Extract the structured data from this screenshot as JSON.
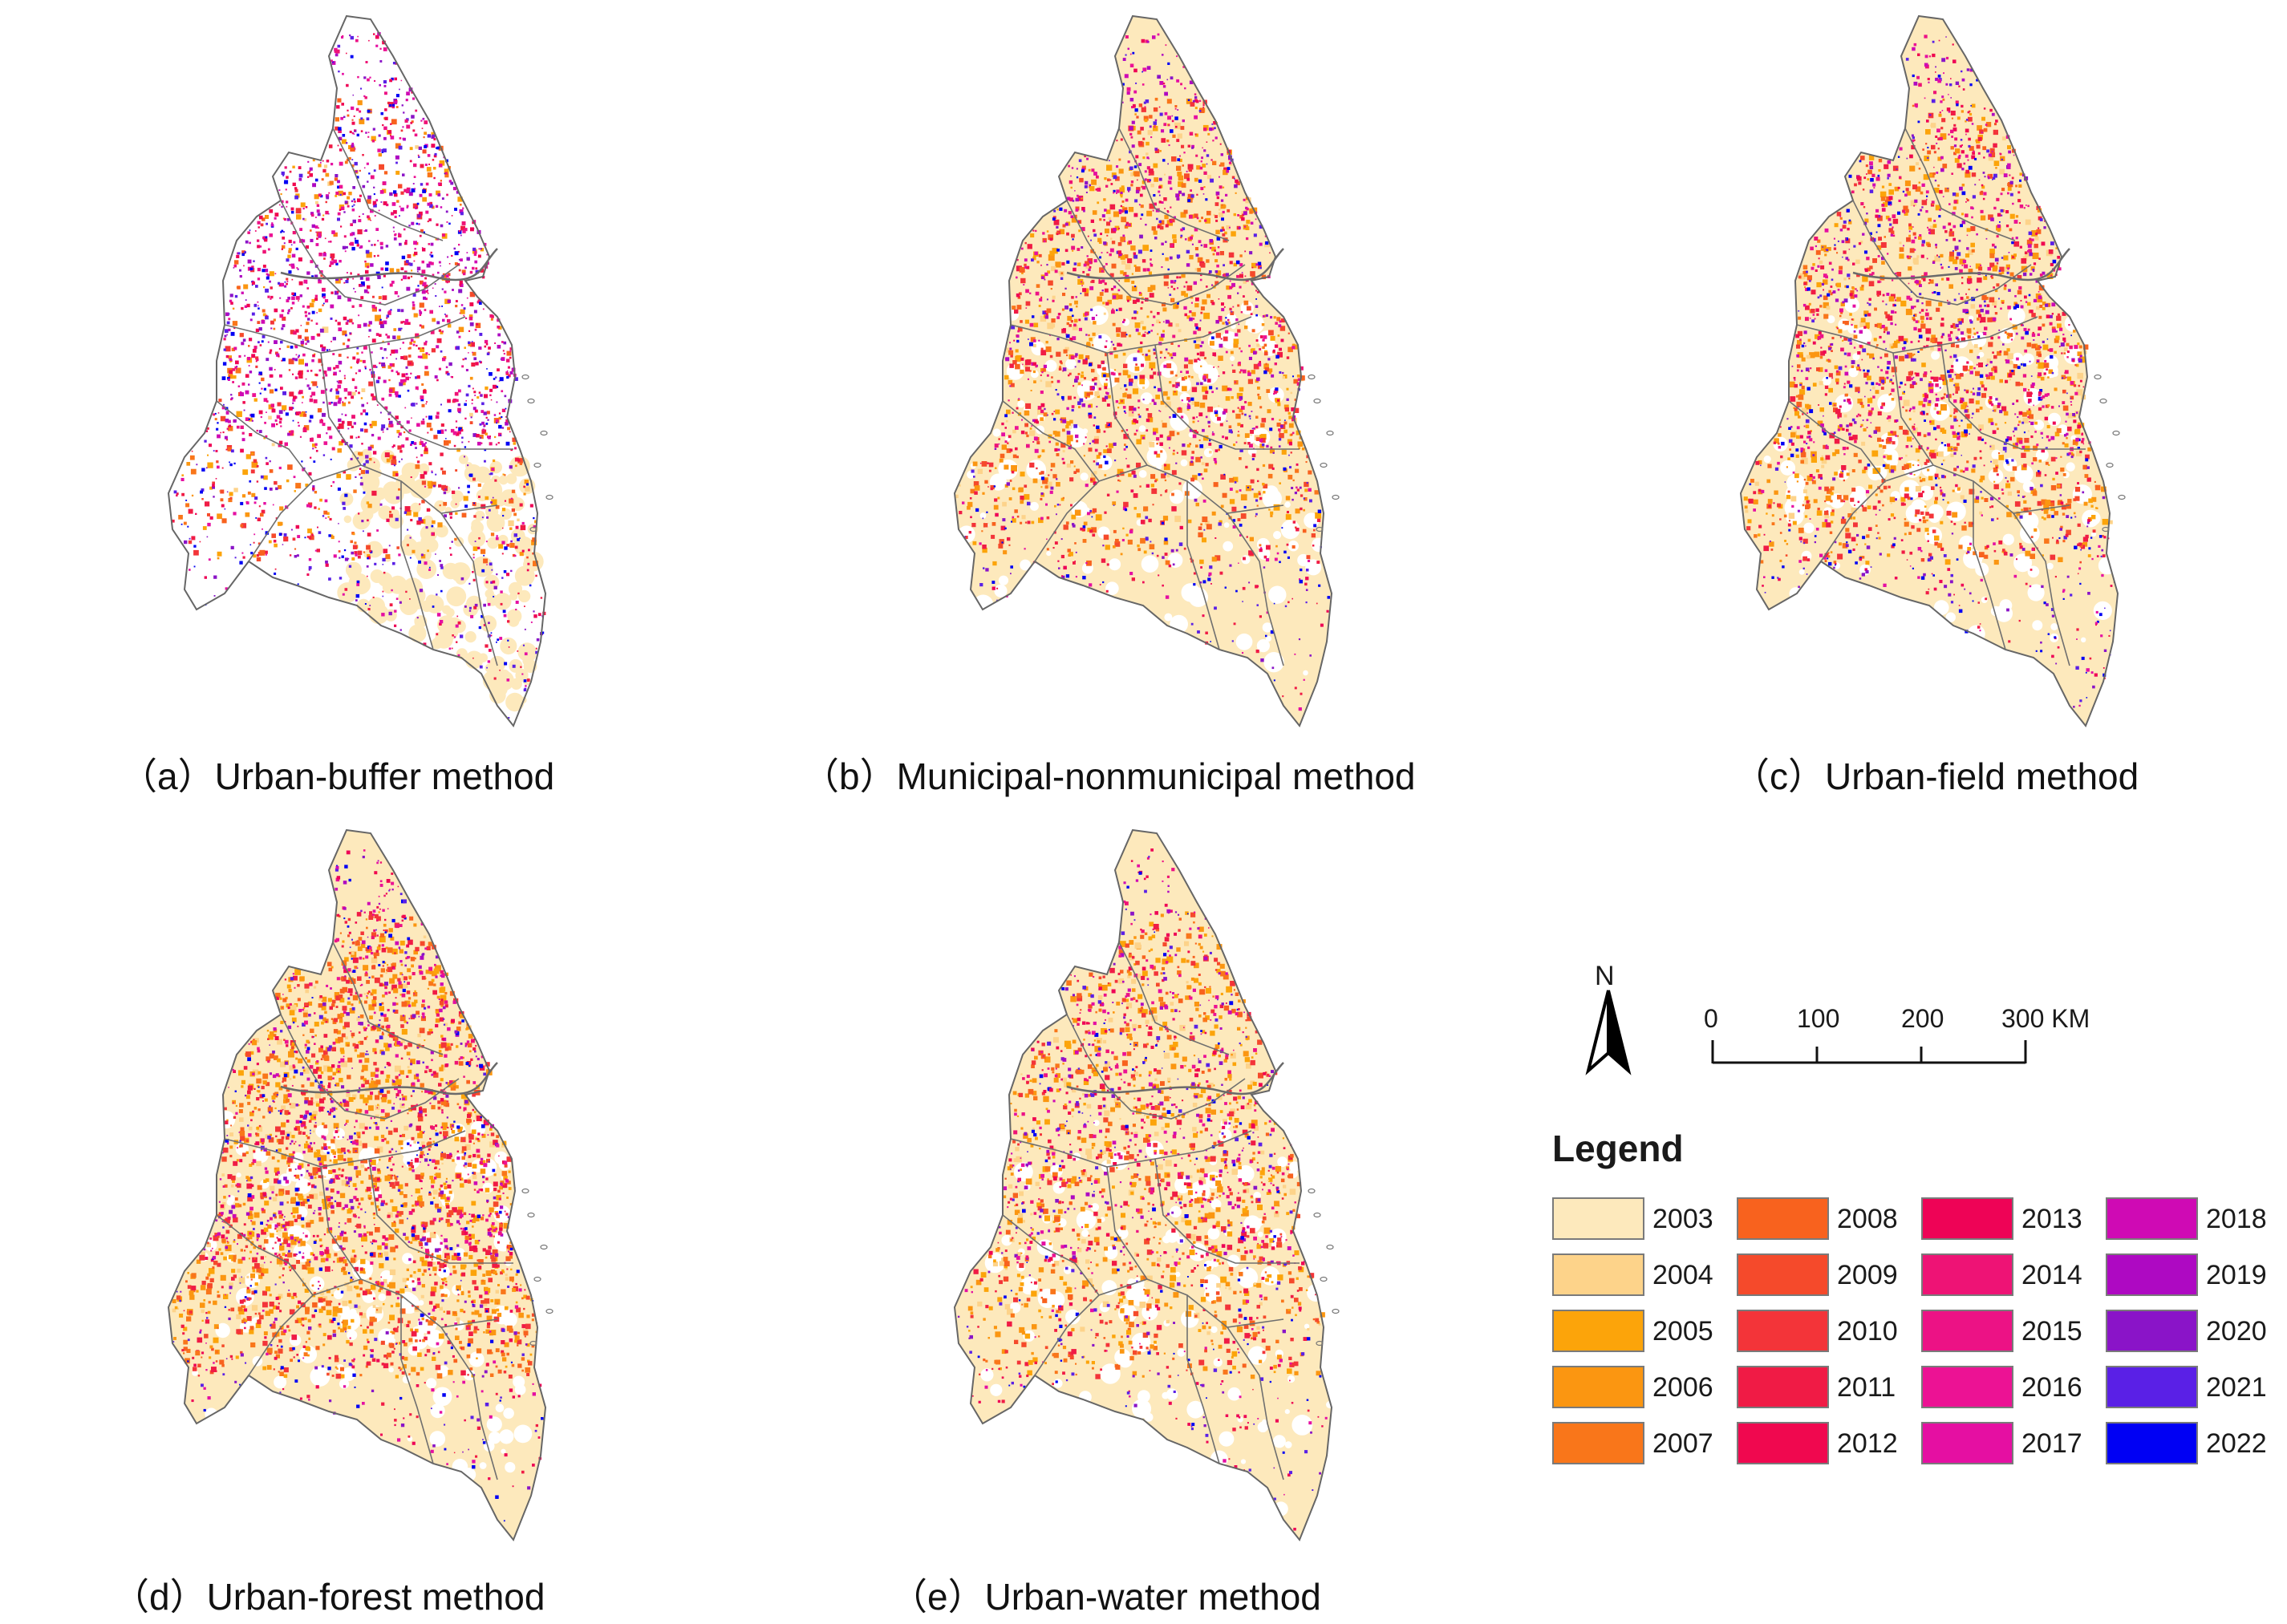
{
  "panels": [
    {
      "id": "a",
      "caption": "（a）Urban-buffer method",
      "variant": "buffer"
    },
    {
      "id": "b",
      "caption": "（b）Municipal-nonmunicipal method",
      "variant": "municipal"
    },
    {
      "id": "c",
      "caption": "（c）Urban-field method",
      "variant": "field"
    },
    {
      "id": "d",
      "caption": "（d）Urban-forest method",
      "variant": "forest"
    },
    {
      "id": "e",
      "caption": "（e）Urban-water method",
      "variant": "water"
    }
  ],
  "north_arrow": {
    "label": "N"
  },
  "scale_bar": {
    "ticks": [
      "0",
      "100",
      "200",
      "300 KM"
    ],
    "unit": "KM"
  },
  "legend": {
    "title": "Legend",
    "items": [
      {
        "year": "2003",
        "color": "#FDE9BC"
      },
      {
        "year": "2004",
        "color": "#FDD38A"
      },
      {
        "year": "2005",
        "color": "#FCA40A"
      },
      {
        "year": "2006",
        "color": "#FB9611"
      },
      {
        "year": "2007",
        "color": "#F9761A"
      },
      {
        "year": "2008",
        "color": "#F8621E"
      },
      {
        "year": "2009",
        "color": "#F54A2B"
      },
      {
        "year": "2010",
        "color": "#F33439"
      },
      {
        "year": "2011",
        "color": "#F01B45"
      },
      {
        "year": "2012",
        "color": "#F0084F"
      },
      {
        "year": "2013",
        "color": "#EE0356"
      },
      {
        "year": "2014",
        "color": "#EE1375"
      },
      {
        "year": "2015",
        "color": "#EC1285"
      },
      {
        "year": "2016",
        "color": "#EC1294"
      },
      {
        "year": "2017",
        "color": "#E50FA2"
      },
      {
        "year": "2018",
        "color": "#CF0AB4"
      },
      {
        "year": "2019",
        "color": "#AE09C2"
      },
      {
        "year": "2020",
        "color": "#8A14C8"
      },
      {
        "year": "2021",
        "color": "#5A20E6"
      },
      {
        "year": "2022",
        "color": "#0000F4"
      }
    ]
  }
}
